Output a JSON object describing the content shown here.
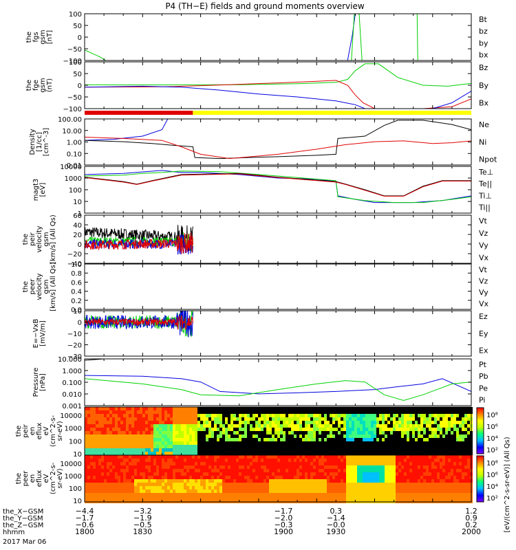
{
  "title": "P4 (TH−E) fields and ground moments overview",
  "date": "2017 Mar 06",
  "colors": {
    "black": "#000000",
    "red": "#e00000",
    "green": "#00d000",
    "blue": "#0000e0",
    "yellow": "#ffff00"
  },
  "chart_data": [
    {
      "type": "line",
      "id": "fgs",
      "ylabel": [
        "the",
        "fgs",
        "gsm",
        "[nT]"
      ],
      "yticks": [
        "100",
        "50",
        "0",
        "−50",
        "−100"
      ],
      "ylim": [
        -100,
        100
      ],
      "legend": [
        {
          "label": "Bt",
          "color": "#000000"
        },
        {
          "label": "bz",
          "color": "#e00000"
        },
        {
          "label": "by",
          "color": "#00d000"
        },
        {
          "label": "bx",
          "color": "#0000e0"
        }
      ],
      "series": [
        {
          "name": "by",
          "color": "#00d000",
          "x": [
            1800,
            1808,
            1811
          ],
          "y": [
            -55,
            -85,
            -100
          ]
        },
        {
          "name": "bx",
          "color": "#0000e0",
          "x": [
            1936,
            1938.5,
            1940,
            1941
          ],
          "y": [
            -100,
            10,
            100,
            100
          ]
        },
        {
          "name": "by",
          "color": "#00d000",
          "x": [
            1938,
            1939.5,
            1942,
            1943.5,
            1946
          ],
          "y": [
            -100,
            100,
            100,
            -100,
            -100
          ]
        },
        {
          "name": "by",
          "color": "#00d000",
          "x": [
            1972,
            1972.3,
            1973
          ],
          "y": [
            100,
            -100,
            -100
          ]
        }
      ]
    },
    {
      "type": "line",
      "id": "fge",
      "ylabel": [
        "the",
        "fge",
        "gsm",
        "(nT)"
      ],
      "yticks": [
        "100",
        "50",
        "0",
        "−50",
        "−100"
      ],
      "ylim": [
        -120,
        120
      ],
      "legend": [
        {
          "label": "Bz",
          "color": "#e00000"
        },
        {
          "label": "By",
          "color": "#00d000"
        },
        {
          "label": "Bx",
          "color": "#0000e0"
        }
      ],
      "series": [
        {
          "name": "By",
          "color": "#00d000",
          "x": [
            1800,
            1840,
            1880,
            1910,
            1930,
            1936,
            1940,
            1945,
            1952,
            1962,
            1975,
            1988,
            2000
          ],
          "y": [
            2,
            2,
            3,
            8,
            15,
            30,
            75,
            110,
            110,
            40,
            0,
            -5,
            10
          ]
        },
        {
          "name": "Bz",
          "color": "#e00000",
          "x": [
            1800,
            1840,
            1860,
            1880,
            1900,
            1920,
            1930,
            1936,
            1940,
            1944,
            1950,
            1960,
            1975,
            1990,
            2000
          ],
          "y": [
            -10,
            -8,
            -2,
            5,
            12,
            20,
            25,
            0,
            -50,
            -90,
            -120,
            -120,
            -120,
            -110,
            -70
          ]
        },
        {
          "name": "Bx",
          "color": "#0000e0",
          "x": [
            1800,
            1830,
            1850,
            1870,
            1890,
            1910,
            1930,
            1940,
            1945,
            1960,
            1980,
            1990,
            2000
          ],
          "y": [
            -10,
            -5,
            -10,
            -25,
            -45,
            -60,
            -80,
            -100,
            -120,
            -120,
            -120,
            -90,
            -30
          ]
        }
      ]
    },
    {
      "type": "line",
      "id": "density",
      "scale": "log",
      "ylabel": [
        "Density",
        "[1/cc]",
        "[cm^-3]"
      ],
      "yticks": [
        "100.00",
        "10.00",
        "1.00",
        "0.10",
        "0.01"
      ],
      "ylim": [
        0.01,
        200
      ],
      "legend": [
        {
          "label": "Ne",
          "color": "#e00000"
        },
        {
          "label": "Ni",
          "color": "#000000"
        },
        {
          "label": "Npot",
          "color": "#0000e0"
        }
      ],
      "series": [
        {
          "name": "Npot",
          "color": "#0000e0",
          "x": [
            1800,
            1815,
            1830,
            1840,
            1843
          ],
          "y": [
            2,
            2.5,
            5,
            20,
            200
          ]
        },
        {
          "name": "Ni",
          "color": "#000000",
          "x": [
            1800,
            1820,
            1835,
            1850,
            1856,
            1857,
            1870,
            1885,
            1900,
            1920,
            1930,
            1931,
            1945,
            1955,
            1962,
            1975,
            1990,
            2000
          ],
          "y": [
            2,
            1.5,
            1,
            0.6,
            0.5,
            0.05,
            0.04,
            0.05,
            0.06,
            0.08,
            0.1,
            3,
            5,
            50,
            150,
            150,
            60,
            20
          ]
        },
        {
          "name": "Ne",
          "color": "#e00000",
          "x": [
            1800,
            1820,
            1840,
            1850,
            1860,
            1875,
            1900,
            1920,
            1935,
            1950,
            1965,
            1980,
            1990,
            2000
          ],
          "y": [
            4,
            3,
            2,
            0.5,
            0.1,
            0.04,
            0.1,
            0.3,
            0.8,
            1.5,
            1.8,
            1,
            1.2,
            1.8
          ]
        }
      ]
    },
    {
      "type": "line",
      "id": "temperature",
      "scale": "log",
      "ylabel": [
        "magt3",
        "[eV]"
      ],
      "yticks": [
        "10000",
        "1000",
        "100",
        "10",
        "1"
      ],
      "ylim": [
        1,
        10000
      ],
      "legend": [
        {
          "label": "Te⊥",
          "color": "#e00000"
        },
        {
          "label": "Te||",
          "color": "#000000"
        },
        {
          "label": "Ti⊥",
          "color": "#0000e0"
        },
        {
          "label": "Ti||",
          "color": "#00d000"
        }
      ],
      "series": [
        {
          "name": "Ti⊥",
          "color": "#0000e0",
          "x": [
            1800,
            1820,
            1840,
            1850,
            1860,
            1880,
            1900,
            1920,
            1930,
            1931,
            1940,
            1950,
            1960,
            1970,
            1985,
            2000
          ],
          "y": [
            2000,
            2500,
            4500,
            3000,
            3000,
            2000,
            1000,
            800,
            500,
            30,
            15,
            8,
            8,
            8,
            12,
            30
          ]
        },
        {
          "name": "Ti||",
          "color": "#00d000",
          "x": [
            1800,
            1820,
            1830,
            1840,
            1850,
            1870,
            1900,
            1930,
            1931,
            1945,
            1960,
            1975,
            1990,
            2000
          ],
          "y": [
            1500,
            1800,
            2500,
            3000,
            4000,
            3500,
            1500,
            600,
            25,
            12,
            8,
            8,
            15,
            25
          ]
        },
        {
          "name": "Te||",
          "color": "#000000",
          "x": [
            1800,
            1820,
            1827,
            1835,
            1850,
            1880,
            1900,
            1930,
            1935,
            1945,
            1955,
            1965,
            1975,
            1985,
            2000
          ],
          "y": [
            1200,
            500,
            300,
            600,
            2000,
            2500,
            1200,
            500,
            300,
            100,
            30,
            30,
            200,
            600,
            600
          ]
        },
        {
          "name": "Te⊥",
          "color": "#e00000",
          "x": [
            1800,
            1820,
            1827,
            1835,
            1850,
            1880,
            1900,
            1930,
            1935,
            1945,
            1955,
            1965,
            1975,
            1985,
            2000
          ],
          "y": [
            1100,
            450,
            280,
            550,
            1800,
            2300,
            1100,
            450,
            280,
            90,
            28,
            28,
            180,
            550,
            550
          ]
        }
      ]
    },
    {
      "type": "line",
      "id": "peir-velocity",
      "ylabel": [
        "the",
        "peir",
        "velocity",
        "gsm",
        "[km/s] (All Qs)"
      ],
      "yticks": [
        "60",
        "40",
        "20",
        "0",
        "−20",
        "−40"
      ],
      "ylim": [
        -40,
        60
      ],
      "legend": [
        {
          "label": "Vt",
          "color": "#000000"
        },
        {
          "label": "Vz",
          "color": "#e00000"
        },
        {
          "label": "Vy",
          "color": "#00d000"
        },
        {
          "label": "Vx",
          "color": "#0000e0"
        }
      ],
      "series": [
        {
          "name": "Vt",
          "color": "#000000",
          "x": [
            1800,
            1856
          ],
          "y": [
            25,
            12
          ],
          "noise": 12
        },
        {
          "name": "Vy",
          "color": "#00d000",
          "x": [
            1800,
            1856
          ],
          "y": [
            5,
            5
          ],
          "noise": 10
        },
        {
          "name": "Vx",
          "color": "#0000e0",
          "x": [
            1800,
            1856
          ],
          "y": [
            0,
            0
          ],
          "noise": 10
        },
        {
          "name": "Vz",
          "color": "#e00000",
          "x": [
            1800,
            1856
          ],
          "y": [
            -2,
            2
          ],
          "noise": 10
        }
      ]
    },
    {
      "type": "line",
      "id": "peer-velocity",
      "ylabel": [
        "the",
        "peer",
        "velocity",
        "gsm",
        "[km/s] (All Qs)"
      ],
      "yticks": [
        "1.0",
        "0.8",
        "0.6",
        "0.4",
        "0.2",
        "0.0"
      ],
      "ylim": [
        0,
        1
      ],
      "legend": [
        {
          "label": "Vt",
          "color": "#000000"
        },
        {
          "label": "Vz",
          "color": "#e00000"
        },
        {
          "label": "Vy",
          "color": "#00d000"
        },
        {
          "label": "Vx",
          "color": "#0000e0"
        }
      ],
      "series": []
    },
    {
      "type": "line",
      "id": "efield",
      "ylabel": [
        "E=−VxB",
        "[mV/m]"
      ],
      "yticks": [
        "10",
        "0",
        "−10",
        "−20",
        "−30"
      ],
      "ylim": [
        -30,
        10
      ],
      "legend": [
        {
          "label": "Ez",
          "color": "#e00000"
        },
        {
          "label": "Ey",
          "color": "#00d000"
        },
        {
          "label": "Ex",
          "color": "#0000e0"
        }
      ],
      "series": [
        {
          "name": "Ey",
          "color": "#00d000",
          "x": [
            1800,
            1856
          ],
          "y": [
            0,
            0
          ],
          "noise": 6
        },
        {
          "name": "Ex",
          "color": "#0000e0",
          "x": [
            1800,
            1856
          ],
          "y": [
            0,
            0
          ],
          "noise": 6
        },
        {
          "name": "Ez",
          "color": "#e00000",
          "x": [
            1800,
            1856
          ],
          "y": [
            0,
            0
          ],
          "noise": 3
        }
      ]
    },
    {
      "type": "line",
      "id": "pressure",
      "scale": "log",
      "ylabel": [
        "Pressure",
        "[nPa]"
      ],
      "yticks": [
        "10.000",
        "1.000",
        "0.100",
        "0.010",
        "0.001"
      ],
      "ylim": [
        0.001,
        20
      ],
      "legend": [
        {
          "label": "Pt",
          "color": "#000000"
        },
        {
          "label": "Pb",
          "color": "#e00000"
        },
        {
          "label": "Pe",
          "color": "#00d000"
        },
        {
          "label": "Pi",
          "color": "#0000e0"
        }
      ],
      "series": [
        {
          "name": "Pt",
          "color": "#000000",
          "x": [
            1800,
            1810
          ],
          "y": [
            15,
            20
          ]
        },
        {
          "name": "Pi",
          "color": "#0000e0",
          "x": [
            1800,
            1830,
            1850,
            1860,
            1870,
            1890,
            1910,
            1930,
            1950,
            1960,
            1975,
            1985,
            2000
          ],
          "y": [
            0.6,
            0.5,
            0.3,
            0.15,
            0.02,
            0.012,
            0.015,
            0.02,
            0.03,
            0.05,
            0.1,
            0.3,
            0.02
          ]
        },
        {
          "name": "Pe",
          "color": "#00d000",
          "x": [
            1800,
            1830,
            1850,
            1860,
            1880,
            1900,
            1920,
            1935,
            1945,
            1955,
            1965,
            1975,
            1990,
            2000
          ],
          "y": [
            0.3,
            0.1,
            0.03,
            0.01,
            0.008,
            0.03,
            0.1,
            0.2,
            0.15,
            0.01,
            0.003,
            0.01,
            0.1,
            0.15
          ]
        }
      ]
    },
    {
      "type": "heatmap",
      "id": "peir-spectrogram",
      "ylabel": [
        "the",
        "peir",
        "en",
        "eflux",
        "eV",
        "(cm^2-s-",
        "sr-eV)"
      ],
      "yticks": [
        "10000",
        "1000",
        "100",
        "10"
      ]
    },
    {
      "type": "heatmap",
      "id": "peer-spectrogram",
      "ylabel": [
        "the",
        "peer",
        "en",
        "eflux",
        "eV",
        "(cm^2-s-",
        "sr-eV)"
      ],
      "yticks": [
        "10000",
        "1000",
        "100",
        "10"
      ]
    }
  ],
  "colorbar": {
    "ticks": [
      "10⁸",
      "10⁶",
      "10⁴",
      "10²"
    ],
    "ticks_lower": [
      "10⁸",
      "10⁶",
      "10⁴",
      "10²"
    ],
    "label": "[eV/(cm^2-s-sr-eV)] (All Qs)"
  },
  "xaxis": {
    "rows": [
      {
        "label": "the_X−GSM",
        "values": [
          "−4.4",
          "−3.2",
          "−1.7",
          "0.3",
          "1.2"
        ]
      },
      {
        "label": "the_Y−GSM",
        "values": [
          "−1.7",
          "−1.9",
          "−2.0",
          "−1.4",
          "0.9"
        ]
      },
      {
        "label": "the_Z−GSM",
        "values": [
          "−0.6",
          "−0.5",
          "−0.3",
          "−0.0",
          "0.2"
        ]
      },
      {
        "label": "hhmm",
        "values": [
          "1800",
          "1830",
          "1900",
          "1930",
          "2000"
        ]
      }
    ]
  }
}
